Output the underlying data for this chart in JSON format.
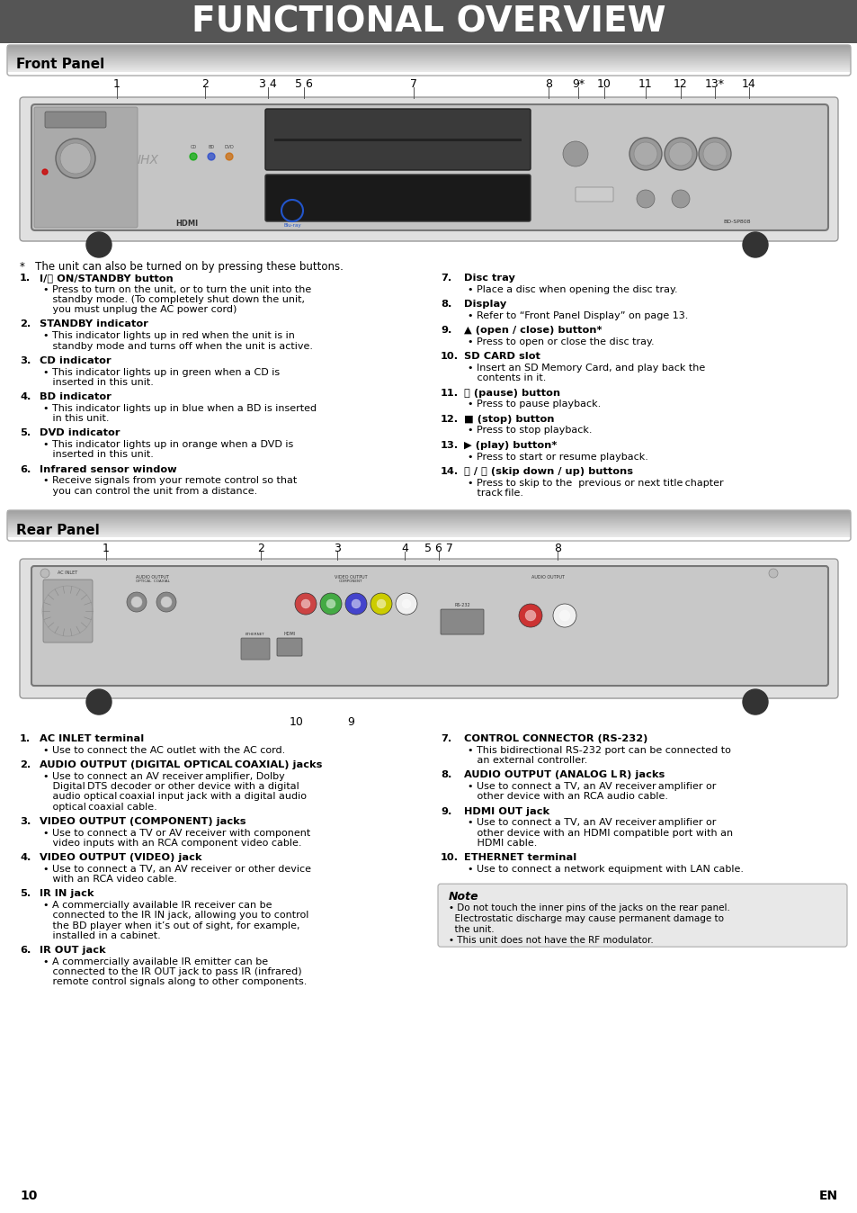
{
  "title": "FUNCTIONAL OVERVIEW",
  "title_bg": "#555555",
  "title_color": "#ffffff",
  "section_front": "Front Panel",
  "section_rear": "Rear Panel",
  "page_bg": "#ffffff",
  "footnote": "*   The unit can also be turned on by pressing these buttons.",
  "front_items_left": [
    [
      "1.",
      "I/⏻ ON/STANDBY button",
      "Press to turn on the unit, or to turn the unit into the\nstandby mode. (To completely shut down the unit,\nyou must unplug the AC power cord)"
    ],
    [
      "2.",
      "STANDBY indicator",
      "This indicator lights up in red when the unit is in\nstandby mode and turns off when the unit is active."
    ],
    [
      "3.",
      "CD indicator",
      "This indicator lights up in green when a CD is\ninserted in this unit."
    ],
    [
      "4.",
      "BD indicator",
      "This indicator lights up in blue when a BD is inserted\nin this unit."
    ],
    [
      "5.",
      "DVD indicator",
      "This indicator lights up in orange when a DVD is\ninserted in this unit."
    ],
    [
      "6.",
      "Infrared sensor window",
      "Receive signals from your remote control so that\nyou can control the unit from a distance."
    ]
  ],
  "front_items_right": [
    [
      "7.",
      "Disc tray",
      "Place a disc when opening the disc tray."
    ],
    [
      "8.",
      "Display",
      "Refer to “Front Panel Display” on page 13."
    ],
    [
      "9.",
      "▲ (open / close) button*",
      "Press to open or close the disc tray."
    ],
    [
      "10.",
      "SD CARD slot",
      "Insert an SD Memory Card, and play back the\ncontents in it."
    ],
    [
      "11.",
      "⏸ (pause) button",
      "Press to pause playback."
    ],
    [
      "12.",
      "■ (stop) button",
      "Press to stop playback."
    ],
    [
      "13.",
      "▶ (play) button*",
      "Press to start or resume playback."
    ],
    [
      "14.",
      "⏮ / ⏭ (skip down / up) buttons",
      "Press to skip to the  previous or next title chapter \ntrack file."
    ]
  ],
  "rear_items_left": [
    [
      "1.",
      "AC INLET terminal",
      "Use to connect the AC outlet with the AC cord."
    ],
    [
      "2.",
      "AUDIO OUTPUT (DIGITAL OPTICAL COAXIAL) jacks",
      "Use to connect an AV receiver amplifier, Dolby\nDigital DTS decoder or other device with a digital\naudio optical coaxial input jack with a digital audio\noptical coaxial cable."
    ],
    [
      "3.",
      "VIDEO OUTPUT (COMPONENT) jacks",
      "Use to connect a TV or AV receiver with component\nvideo inputs with an RCA component video cable."
    ],
    [
      "4.",
      "VIDEO OUTPUT (VIDEO) jack",
      "Use to connect a TV, an AV receiver or other device\nwith an RCA video cable."
    ],
    [
      "5.",
      "IR IN jack",
      "A commercially available IR receiver can be\nconnected to the IR IN jack, allowing you to control\nthe BD player when it’s out of sight, for example,\ninstalled in a cabinet."
    ],
    [
      "6.",
      "IR OUT jack",
      "A commercially available IR emitter can be\nconnected to the IR OUT jack to pass IR (infrared)\nremote control signals along to other components."
    ]
  ],
  "rear_items_right": [
    [
      "7.",
      "CONTROL CONNECTOR (RS-232)",
      "This bidirectional RS-232 port can be connected to\nan external controller."
    ],
    [
      "8.",
      "AUDIO OUTPUT (ANALOG L R) jacks",
      "Use to connect a TV, an AV receiver amplifier or\nother device with an RCA audio cable."
    ],
    [
      "9.",
      "HDMI OUT jack",
      "Use to connect a TV, an AV receiver amplifier or\nother device with an HDMI compatible port with an\nHDMI cable."
    ],
    [
      "10.",
      "ETHERNET terminal",
      "Use to connect a network equipment with LAN cable."
    ]
  ],
  "note_title": "Note",
  "note_lines": [
    "• Do not touch the inner pins of the jacks on the rear panel.\n  Electrostatic discharge may cause permanent damage to\n  the unit.",
    "• This unit does not have the RF modulator."
  ],
  "page_num": "10",
  "en_label": "EN",
  "front_num_data": [
    [
      130,
      "1"
    ],
    [
      228,
      "2"
    ],
    [
      298,
      "3 4"
    ],
    [
      338,
      "5 6"
    ],
    [
      460,
      "7"
    ],
    [
      610,
      "8"
    ],
    [
      643,
      "9*"
    ],
    [
      672,
      "10"
    ],
    [
      718,
      "11"
    ],
    [
      757,
      "12"
    ],
    [
      795,
      "13*"
    ],
    [
      833,
      "14"
    ]
  ],
  "rear_num_data": [
    [
      118,
      "1"
    ],
    [
      290,
      "2"
    ],
    [
      375,
      "3"
    ],
    [
      450,
      "4"
    ],
    [
      488,
      "5 6 7"
    ],
    [
      620,
      "8"
    ]
  ],
  "rear_num_below": [
    [
      330,
      "10"
    ],
    [
      390,
      "9"
    ]
  ]
}
